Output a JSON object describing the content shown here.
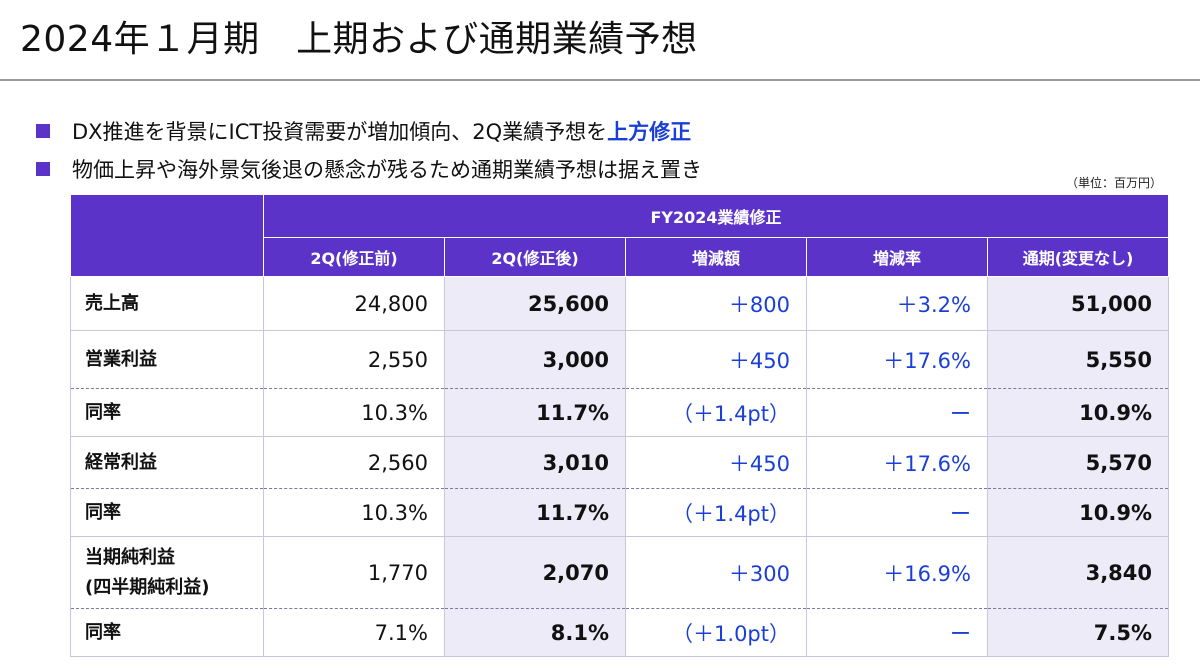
{
  "header": {
    "title": "2024年１月期　上期および通期業績予想"
  },
  "bullets": [
    {
      "text": "DX推進を背景にICT投資需要が増加傾向、2Q業績予想を",
      "highlight": "上方修正"
    },
    {
      "text": "物価上昇や海外景気後退の懸念が残るため通期業績予想は据え置き",
      "highlight": ""
    }
  ],
  "unit_note": "（単位：百万円）",
  "table": {
    "group_header": "FY2024業績修正",
    "columns": [
      "2Q(修正前)",
      "2Q(修正後)",
      "増減額",
      "増減率",
      "通期(変更なし)"
    ],
    "rows": [
      {
        "label": "売上高",
        "label2": "",
        "values": [
          "24,800",
          "25,600",
          "＋800",
          "＋3.2%",
          "51,000"
        ],
        "sep": "solid"
      },
      {
        "label": "営業利益",
        "label2": "",
        "values": [
          "2,550",
          "3,000",
          "＋450",
          "＋17.6%",
          "5,550"
        ],
        "sep": "solid"
      },
      {
        "label": "同率",
        "label2": "",
        "values": [
          "10.3%",
          "11.7%",
          "（＋1.4pt）",
          "ー",
          "10.9%"
        ],
        "sep": "dotted"
      },
      {
        "label": "経常利益",
        "label2": "",
        "values": [
          "2,560",
          "3,010",
          "＋450",
          "＋17.6%",
          "5,570"
        ],
        "sep": "solid"
      },
      {
        "label": "同率",
        "label2": "",
        "values": [
          "10.3%",
          "11.7%",
          "（＋1.4pt）",
          "ー",
          "10.9%"
        ],
        "sep": "dotted"
      },
      {
        "label": "当期純利益",
        "label2": "(四半期純利益)",
        "values": [
          "1,770",
          "2,070",
          "＋300",
          "＋16.9%",
          "3,840"
        ],
        "sep": "solid"
      },
      {
        "label": "同率",
        "label2": "",
        "values": [
          "7.1%",
          "8.1%",
          "（＋1.0pt）",
          "ー",
          "7.5%"
        ],
        "sep": "dotted"
      }
    ]
  },
  "colors": {
    "header_purple": "#5b33c8",
    "shade": "#ecebf7",
    "accent_blue": "#1a3fd6"
  }
}
